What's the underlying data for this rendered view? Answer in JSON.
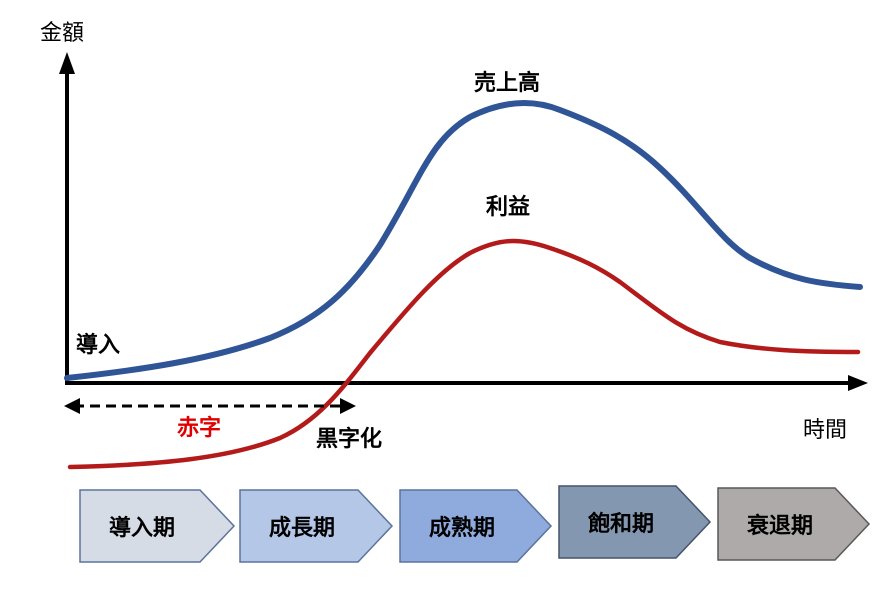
{
  "axes": {
    "y_label": "金額",
    "x_label": "時間"
  },
  "curves": {
    "sales_label": "売上高",
    "profit_label": "利益"
  },
  "annotations": {
    "intro": "導入",
    "deficit": "赤字",
    "turnaround": "黒字化"
  },
  "stages": [
    "導入期",
    "成長期",
    "成熟期",
    "飽和期",
    "衰退期"
  ],
  "colors": {
    "sales": "#2f5597",
    "profit": "#b31b1b",
    "deficit_text": "#e00000",
    "axis": "#000000",
    "stage_fills": [
      "#d6dce5",
      "#b4c7e7",
      "#8faadc",
      "#8497b0",
      "#aeaaaa"
    ],
    "stage_borders": [
      "#5b739b",
      "#5b739b",
      "#5b739b",
      "#44546a",
      "#595959"
    ]
  }
}
